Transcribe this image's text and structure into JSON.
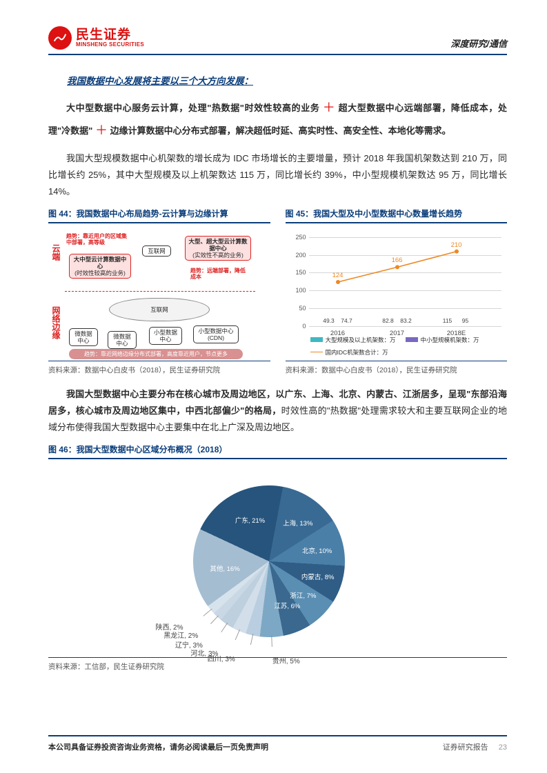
{
  "header": {
    "logo_cn": "民生证券",
    "logo_en": "MINSHENG SECURITIES",
    "right": "深度研究/通信"
  },
  "h1": "我国数据中心发展将主要以三个大方向发展：",
  "p1_pre": "大中型数据中心服务云计算，处理\"热数据\"时效性较高的业务 ",
  "p1_mid": " 超大型数据中心远端部署，降低成本，处理\"冷数据\" ",
  "p1_end": " 边缘计算数据中心分布式部署，解决超低时延、高实时性、高安全性、本地化等需求。",
  "p2": "我国大型规模数据中心机架数的增长成为 IDC 市场增长的主要增量，预计 2018 年我国机架数达到 210 万，同比增长约 25%，其中大型规模及以上机架数达 115 万，同比增长约 39%，中小型规模机架数达 95 万，同比增长 14%。",
  "fig44": {
    "title": "图 44：我国数据中心布局趋势-云计算与边缘计算",
    "side_cloud": "云端",
    "side_edge": "网络边缘",
    "trend1": "趋势：靠近用户的区域集中部署，高等级",
    "box_big": "大中型云计算数据中心",
    "box_big_sub": "(时效性较高的业务)",
    "box_internet1": "互联网",
    "box_super": "大型、超大型云计算数据中心",
    "box_super_sub": "(实效性不高的业务)",
    "trend2": "趋势：远端部署，降低成本",
    "cloud_internet": "互联网",
    "node1": "微数据中心",
    "node2": "微数据中心",
    "node3": "小型数据中心",
    "node4": "小型数据中心(CDN)",
    "banner": "趋势：靠近网络边缘分布式部署，高度靠近用户，节点更多",
    "src": "资料来源：数据中心白皮书（2018），民生证券研究院"
  },
  "fig45": {
    "title": "图 45：我国大型及中小型数据中心数量增长趋势",
    "type": "bar+line",
    "ylim": [
      0,
      250
    ],
    "ytick_step": 50,
    "categories": [
      "2016",
      "2017",
      "2018E"
    ],
    "series1": {
      "name": "大型规模及以上机架数：万",
      "color": "#3fb7c4",
      "values": [
        49.3,
        82.8,
        115
      ]
    },
    "series2": {
      "name": "中小型规模机架数：万",
      "color": "#7a68c0",
      "values": [
        74.7,
        83.2,
        95
      ]
    },
    "series3": {
      "name": "国内IDC机架数合计：万",
      "color": "#ee8822",
      "values": [
        124,
        166,
        210
      ]
    },
    "src": "资料来源：数据中心白皮书（2018），民生证券研究院"
  },
  "p3_bold": "我国大型数据中心主要分布在核心城市及周边地区，以广东、上海、北京、内蒙古、江浙居多，呈现\"东部沿海居多，核心城市及周边地区集中，中西北部偏少\"的格局，",
  "p3_rest": "时效性高的\"热数据\"处理需求较大和主要互联网企业的地域分布使得我国大型数据中心主要集中在北上广深及周边地区。",
  "fig46": {
    "title": "图 46：我国大型数据中心区域分布概况（2018）",
    "type": "pie",
    "slices": [
      {
        "label": "广东, 21%",
        "value": 21,
        "color": "#26547c"
      },
      {
        "label": "上海, 13%",
        "value": 13,
        "color": "#396a93"
      },
      {
        "label": "北京, 10%",
        "value": 10,
        "color": "#4a7fa8"
      },
      {
        "label": "内蒙古, 8%",
        "value": 8,
        "color": "#2f5d86"
      },
      {
        "label": "浙江, 7%",
        "value": 7,
        "color": "#5a8eb3"
      },
      {
        "label": "江苏, 6%",
        "value": 6,
        "color": "#3a688e"
      },
      {
        "label": "贵州, 5%",
        "value": 5,
        "color": "#7da8c5"
      },
      {
        "label": "四川, 3%",
        "value": 3,
        "color": "#b9cee0"
      },
      {
        "label": "河北, 3%",
        "value": 3,
        "color": "#d2dee9"
      },
      {
        "label": "辽宁, 3%",
        "value": 3,
        "color": "#becfdd"
      },
      {
        "label": "黑龙江, 2%",
        "value": 2,
        "color": "#c9d8e4"
      },
      {
        "label": "陕西, 2%",
        "value": 2,
        "color": "#d6e2ec"
      },
      {
        "label": "其他, 16%",
        "value": 16,
        "color": "#a4bdd1"
      }
    ],
    "src": "资料来源：工信部，民生证券研究院"
  },
  "footer": {
    "left": "本公司具备证券投资咨询业务资格，请务必阅读最后一页免责声明",
    "right": "证券研究报告",
    "page": "23"
  }
}
